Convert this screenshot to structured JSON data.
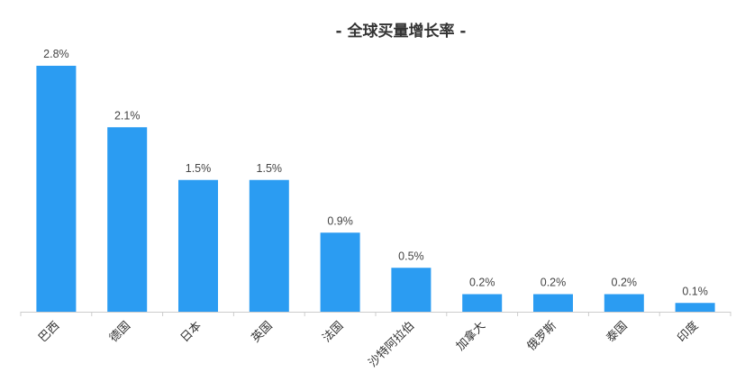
{
  "chart_data": {
    "type": "bar",
    "title": "- 全球买量增长率 -",
    "categories": [
      "巴西",
      "德国",
      "日本",
      "英国",
      "法国",
      "沙特阿拉伯",
      "加拿大",
      "俄罗斯",
      "泰国",
      "印度"
    ],
    "values": [
      2.8,
      2.1,
      1.5,
      1.5,
      0.9,
      0.5,
      0.2,
      0.2,
      0.2,
      0.1
    ],
    "value_labels": [
      "2.8%",
      "2.1%",
      "1.5%",
      "1.5%",
      "0.9%",
      "0.5%",
      "0.2%",
      "0.2%",
      "0.2%",
      "0.1%"
    ],
    "xlabel": "",
    "ylabel": "",
    "grid": false,
    "legend": "none",
    "bar_color": "#2b9cf2"
  }
}
